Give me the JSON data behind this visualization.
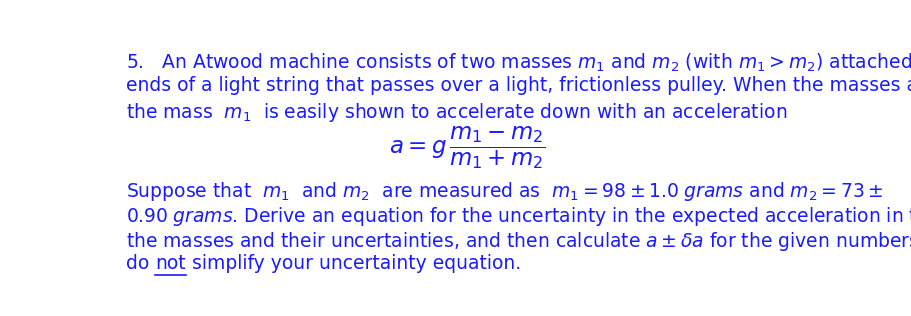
{
  "bg_color": "#ffffff",
  "text_color": "#1a1aff",
  "fig_width": 9.12,
  "fig_height": 3.16,
  "dpi": 100,
  "font_size": 13.5,
  "eq_font_size": 16.5,
  "line1": "5.   An Atwood machine consists of two masses $m_1$ and $m_2$ (with $m_1 > m_2$) attached to the",
  "line2": "ends of a light string that passes over a light, frictionless pulley. When the masses are released,",
  "line3": "the mass  $m_1$  is easily shown to accelerate down with an acceleration",
  "equation": "$a = g\\,\\dfrac{m_1 - m_2}{m_1 + m_2}$",
  "line4": "Suppose that  $m_1$  and $m_2$  are measured as  $m_1 = 98 \\pm 1.0\\; grams$ and $m_2 = 73 \\pm$",
  "line5": "$0.90\\; grams$. Derive an equation for the uncertainty in the expected acceleration in terms of",
  "line6": "the masses and their uncertainties, and then calculate $a \\pm \\delta a$ for the given numbers. Please",
  "line7_part1": "do ",
  "line7_underline": "not",
  "line7_part2": " simplify your uncertainty equation."
}
